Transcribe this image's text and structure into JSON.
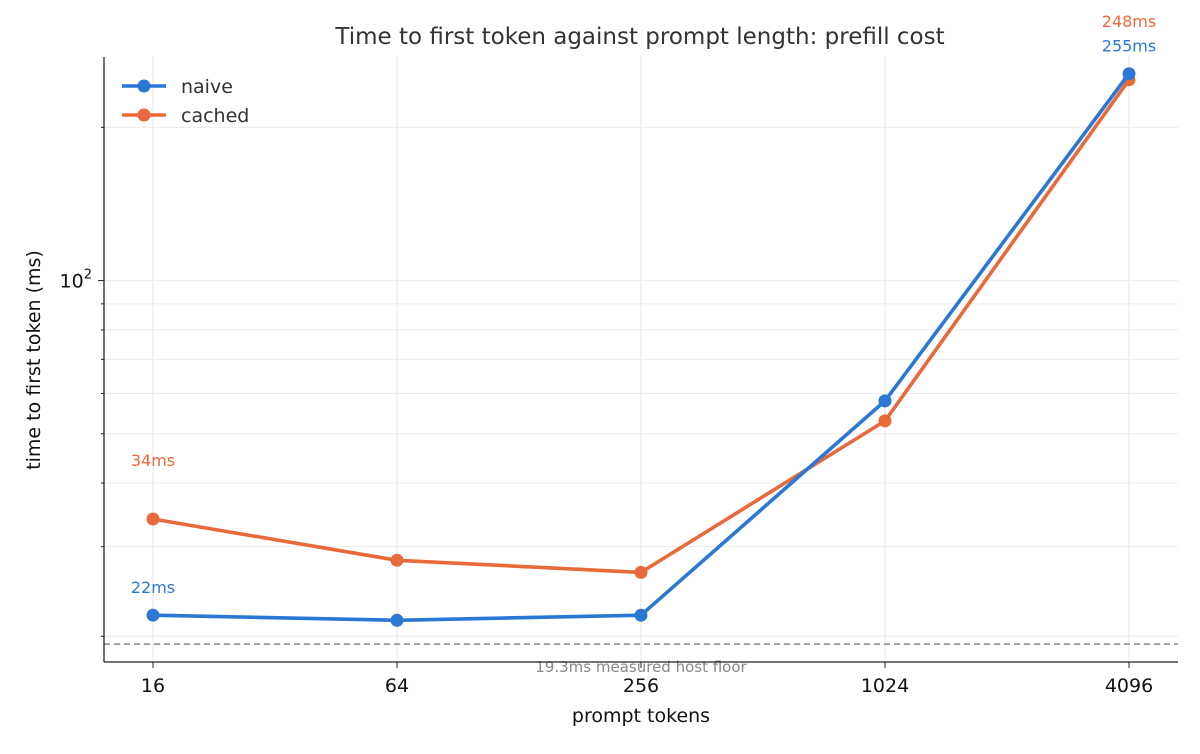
{
  "chart_data": {
    "type": "line",
    "title": "Time to first token against prompt length: prefill cost",
    "xlabel": "prompt tokens",
    "ylabel": "time to first token (ms)",
    "x_scale": "log2",
    "y_scale": "log",
    "x": [
      16,
      64,
      256,
      1024,
      4096
    ],
    "x_tick_labels": [
      "16",
      "64",
      "256",
      "1024",
      "4096"
    ],
    "y_tick_labels": [
      {
        "base": "10",
        "exp": "2",
        "value": 100
      }
    ],
    "ylim": [
      17.8,
      275
    ],
    "grid": true,
    "legend_position": "top-left",
    "series": [
      {
        "name": "naive",
        "color": "#2b78d4",
        "values": [
          22,
          21.5,
          22,
          58,
          255
        ],
        "labels": [
          {
            "index": 0,
            "text": "22ms"
          },
          {
            "index": 4,
            "text": "255ms"
          }
        ]
      },
      {
        "name": "cached",
        "color": "#e8693a",
        "values": [
          34,
          28.2,
          26.7,
          53,
          248
        ],
        "labels": [
          {
            "index": 0,
            "text": "34ms"
          },
          {
            "index": 4,
            "text": "248ms"
          }
        ]
      }
    ],
    "reference_line": {
      "value": 19.3,
      "label": "19.3ms measured host floor",
      "color": "#888888"
    }
  }
}
